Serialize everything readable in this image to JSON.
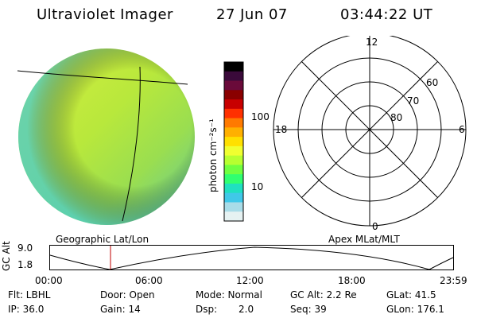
{
  "header": {
    "instrument": "Ultraviolet Imager",
    "date": "27 Jun 07",
    "time": "03:44:22 UT"
  },
  "colorbar": {
    "unit_label": "photon cm⁻²s⁻¹",
    "ticks": [
      "100",
      "10"
    ],
    "colors": [
      "#000000",
      "#3a0a3a",
      "#6a0a3a",
      "#8a0000",
      "#c80000",
      "#ff3000",
      "#ff7a00",
      "#ffb000",
      "#ffe000",
      "#f0ff30",
      "#b8ff30",
      "#70ff40",
      "#30ff70",
      "#20e0c0",
      "#40c8e8",
      "#a8dce8",
      "#e6f2f2"
    ]
  },
  "left_map": {
    "label": "Geographic Lat/Lon"
  },
  "polar_plot": {
    "label": "Apex MLat/MLT",
    "mlt_labels": {
      "top": "12",
      "left": "18",
      "right": "6",
      "bottom": "0"
    },
    "lat_labels": [
      "60",
      "70",
      "80"
    ]
  },
  "altitude_strip": {
    "ylabel": "GC Alt",
    "ymax": "9.0",
    "ymin": "1.8",
    "time_ticks": [
      "00:00",
      "06:00",
      "12:00",
      "18:00",
      "23:59"
    ]
  },
  "info": {
    "filter": "Flt: LBHL",
    "ip": "IP: 36.0",
    "door": "Door: Open",
    "gain": "Gain: 14",
    "mode": "Mode: Normal",
    "dsp_label": "Dsp:",
    "dsp_value": "2.0",
    "gc_alt": "GC Alt: 2.2 Re",
    "seq": "Seq: 39",
    "glat": "GLat: 41.5",
    "glon": "GLon: 176.1"
  }
}
